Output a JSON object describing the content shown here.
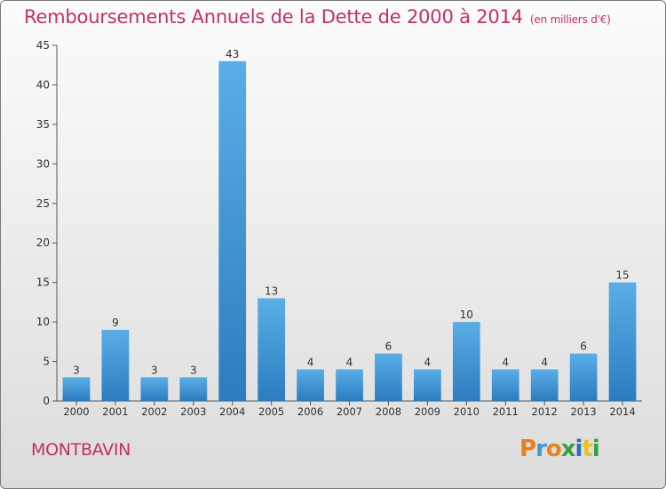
{
  "header": {
    "title": "Remboursements Annuels de la Dette de 2000 à 2014",
    "unit": "(en milliers d'€)"
  },
  "footer": {
    "town": "MONTBAVIN",
    "brand": "Proxiti"
  },
  "colors": {
    "accent": "#c0306a",
    "bar_top": "#5aaee6",
    "bar_bottom": "#2b7cc0",
    "logo_letters": [
      "#e8801c",
      "#3a9ad8",
      "#e8801c",
      "#3aa040",
      "#2e6bb8",
      "#e8c020",
      "#3aa040"
    ]
  },
  "chart_data": {
    "type": "bar",
    "categories": [
      "2000",
      "2001",
      "2002",
      "2003",
      "2004",
      "2005",
      "2006",
      "2007",
      "2008",
      "2009",
      "2010",
      "2011",
      "2012",
      "2013",
      "2014"
    ],
    "values": [
      3,
      9,
      3,
      3,
      43,
      13,
      4,
      4,
      6,
      4,
      10,
      4,
      4,
      6,
      15
    ],
    "ylim": [
      0,
      45
    ],
    "yticks": [
      0,
      5,
      10,
      15,
      20,
      25,
      30,
      35,
      40,
      45
    ],
    "grid": false,
    "legend": "none"
  }
}
